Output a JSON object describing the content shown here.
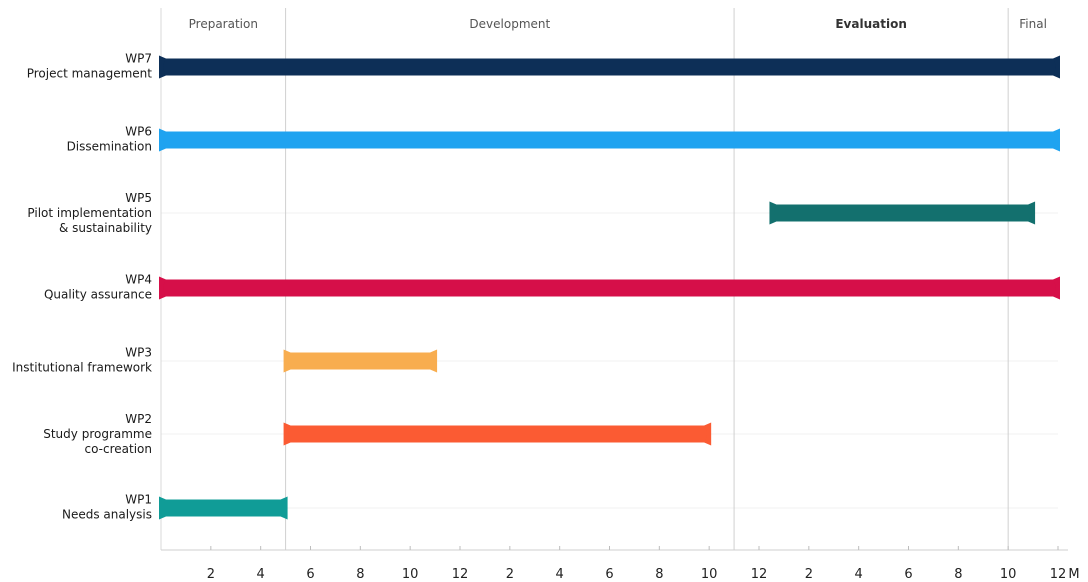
{
  "chart_data": {
    "type": "gantt",
    "axis": {
      "start": 0,
      "end": 36,
      "tick_labels": [
        "2",
        "4",
        "6",
        "8",
        "10",
        "12",
        "2",
        "4",
        "6",
        "8",
        "10",
        "12",
        "2",
        "4",
        "6",
        "8",
        "10",
        "12"
      ],
      "unit_label": "M"
    },
    "phases": [
      {
        "label": "Preparation",
        "start": 0,
        "end": 5
      },
      {
        "label": "Development",
        "start": 5,
        "end": 23
      },
      {
        "label": "Evaluation",
        "start": 23,
        "end": 34
      },
      {
        "label": "Final",
        "start": 34,
        "end": 36
      }
    ],
    "tasks": [
      {
        "id": "WP7",
        "lines": [
          "WP7",
          "Project management"
        ],
        "start": 0,
        "end": 36,
        "color": "#0d2f57"
      },
      {
        "id": "WP6",
        "lines": [
          "WP6",
          "Dissemination"
        ],
        "start": 0,
        "end": 36,
        "color": "#1fa3f0"
      },
      {
        "id": "WP5",
        "lines": [
          "WP5",
          "Pilot implementation",
          "& sustainability"
        ],
        "start": 24.5,
        "end": 35,
        "color": "#13706e"
      },
      {
        "id": "WP4",
        "lines": [
          "WP4",
          "Quality assurance"
        ],
        "start": 0,
        "end": 36,
        "color": "#d60f49"
      },
      {
        "id": "WP3",
        "lines": [
          "WP3",
          "Institutional framework"
        ],
        "start": 5,
        "end": 11,
        "color": "#f8ad4f"
      },
      {
        "id": "WP2",
        "lines": [
          "WP2",
          "Study programme",
          "co-creation"
        ],
        "start": 5,
        "end": 22,
        "color": "#fb5b33"
      },
      {
        "id": "WP1",
        "lines": [
          "WP1",
          "Needs analysis"
        ],
        "start": 0,
        "end": 5,
        "color": "#109c97"
      }
    ]
  }
}
